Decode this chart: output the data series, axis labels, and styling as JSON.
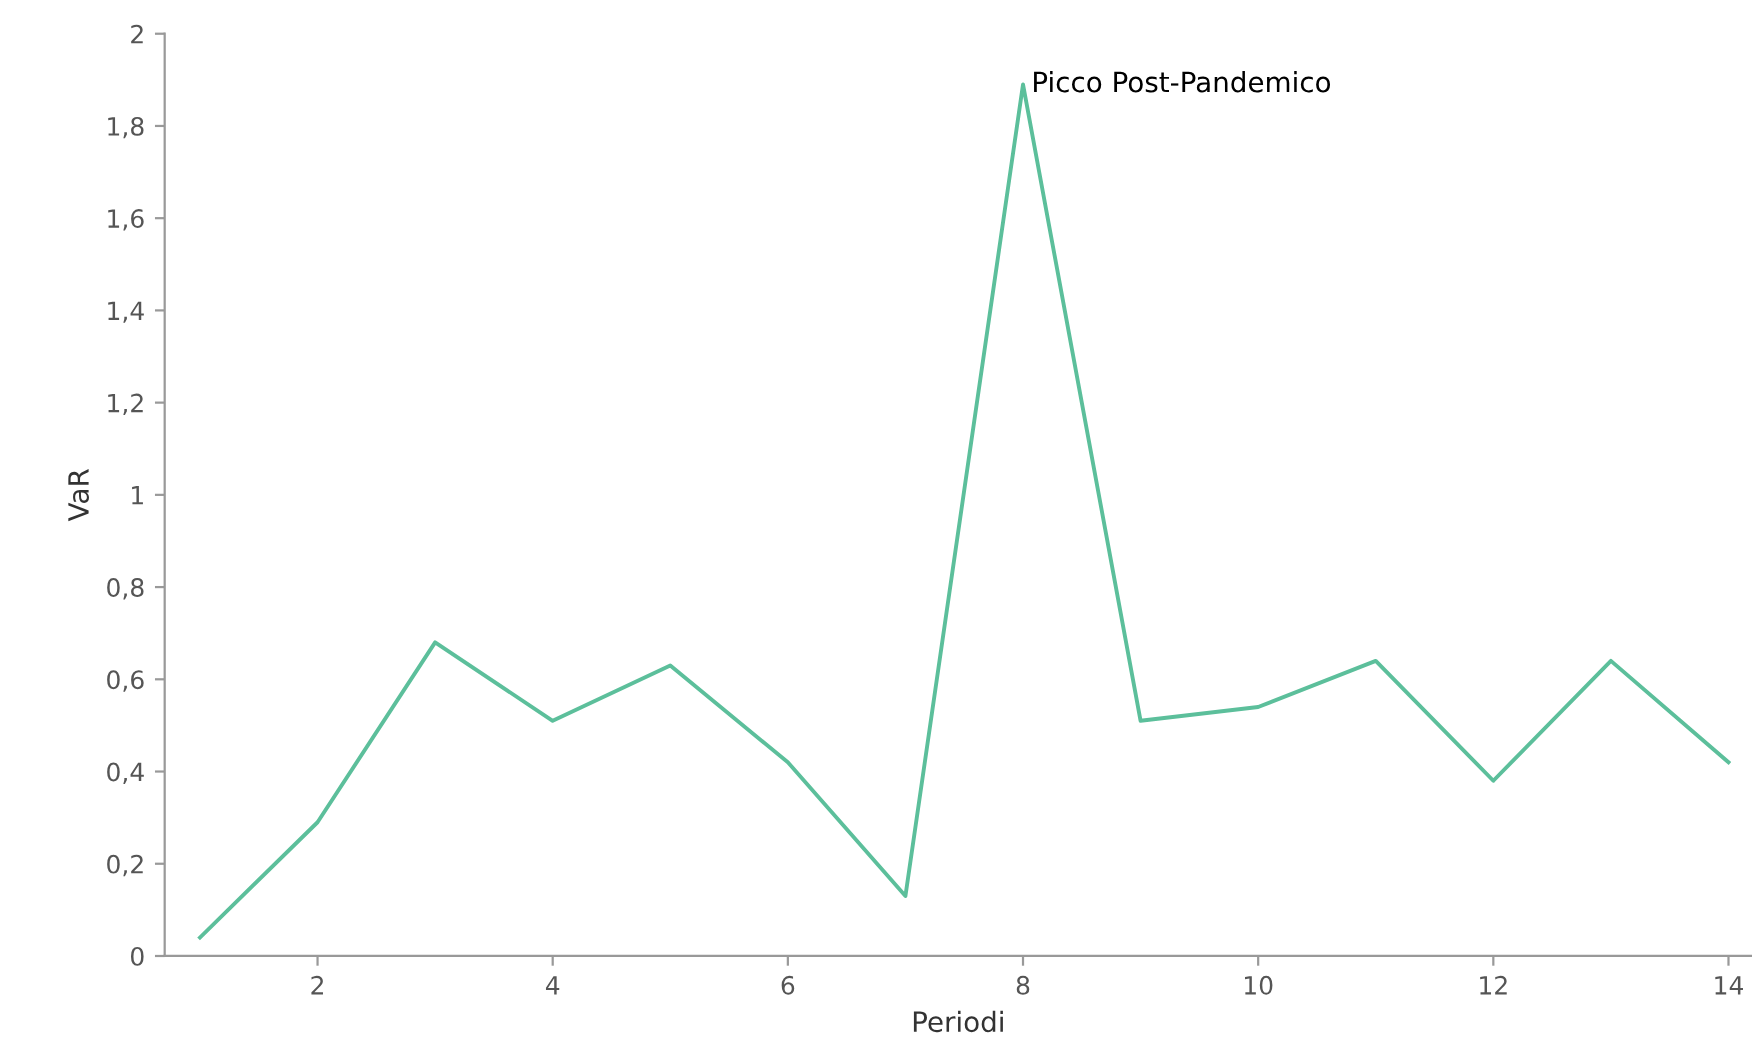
{
  "chart_data": {
    "type": "line",
    "xlabel": "Periodi",
    "ylabel": "VaR",
    "x": [
      1,
      2,
      3,
      4,
      5,
      6,
      7,
      8,
      9,
      10,
      11,
      12,
      13,
      14
    ],
    "series": [
      {
        "color": "#5cbf9b",
        "values": [
          0.04,
          0.29,
          0.68,
          0.51,
          0.63,
          0.42,
          0.13,
          1.89,
          0.51,
          0.54,
          0.64,
          0.38,
          0.64,
          0.42
        ]
      }
    ],
    "annotations": [
      {
        "text": "Picco Post-Pandemico",
        "x": 8,
        "y": 1.89
      }
    ],
    "xlim": [
      0.7,
      14.2
    ],
    "xticks": [
      2,
      4,
      6,
      8,
      10,
      12,
      14
    ],
    "ylim": [
      0,
      2
    ],
    "yticks": [
      0,
      {
        "value": 0.2,
        "label": "0,2"
      },
      {
        "value": 0.4,
        "label": "0,4"
      },
      {
        "value": 0.6,
        "label": "0,6"
      },
      {
        "value": 0.8,
        "label": "0,8"
      },
      1,
      {
        "value": 1.2,
        "label": "1,2"
      },
      {
        "value": 1.4,
        "label": "1,4"
      },
      {
        "value": 1.6,
        "label": "1,6"
      },
      {
        "value": 1.8,
        "label": "1,8"
      },
      2
    ],
    "grid": false,
    "marker": "none",
    "line_style": "solid"
  }
}
